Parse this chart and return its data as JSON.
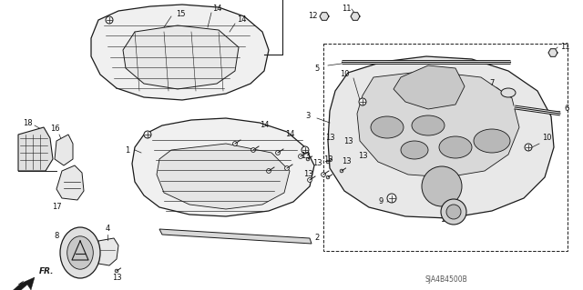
{
  "bg_color": "#ffffff",
  "diagram_id": "SJA4B4500B",
  "fig_width": 6.4,
  "fig_height": 3.19,
  "dpi": 100,
  "line_color": "#1a1a1a",
  "label_fontsize": 6.0,
  "label_color": "#111111",
  "diagram_code": "SJA4B4500B"
}
